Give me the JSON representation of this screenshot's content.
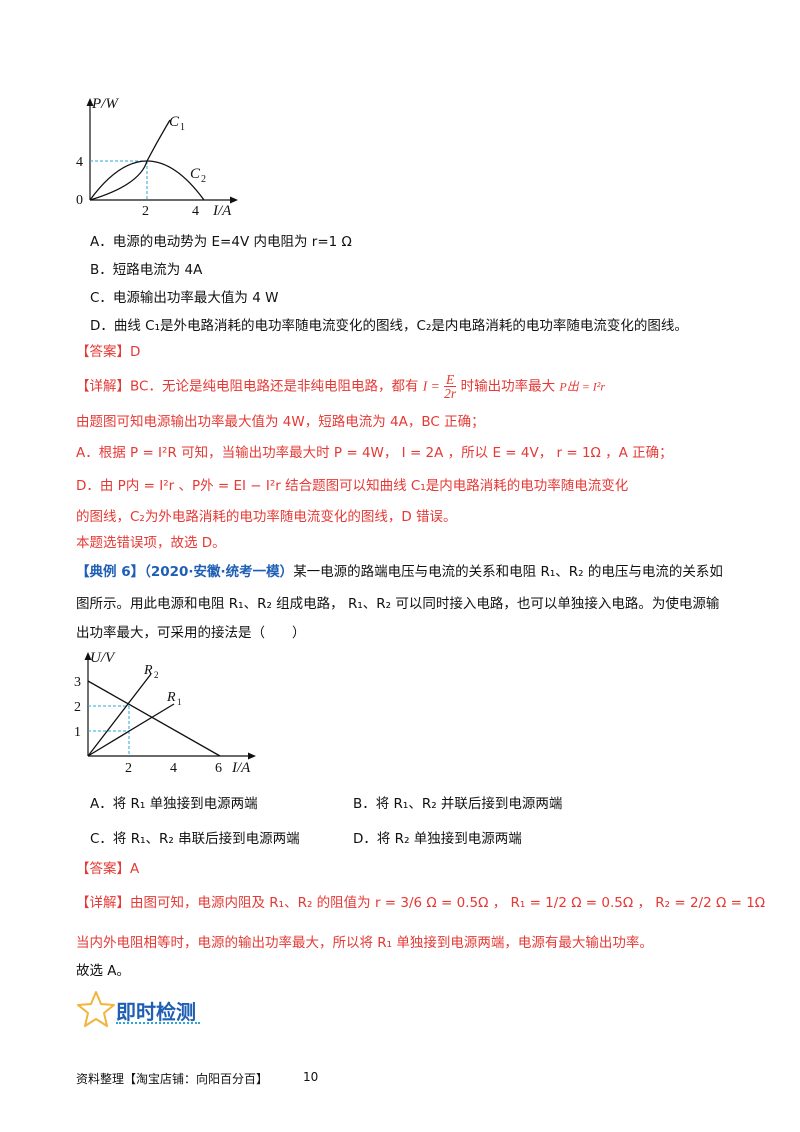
{
  "graph1": {
    "y_axis_label": "P/W",
    "x_axis_label": "I/A",
    "curve1_label": "C",
    "curve1_sub": "1",
    "curve2_label": "C",
    "curve2_sub": "2",
    "y_tick_4": "4",
    "origin": "0",
    "x_tick_2": "2",
    "x_tick_4": "4"
  },
  "options1": {
    "a": "A．电源的电动势为 E=4V 内电阻为 r=1 Ω",
    "b": "B．短路电流为 4A",
    "c": "C．电源输出功率最大值为 4 W",
    "d": "D．曲线 C₁是外电路消耗的电功率随电流变化的图线，C₂是内电路消耗的电功率随电流变化的图线。"
  },
  "answer1": "【答案】D",
  "detail1": {
    "line1_prefix": "【详解】BC．无论是纯电阻电路还是非纯电阻电路，都有",
    "line1_formula_lhs": "I =",
    "line1_frac_num": "E",
    "line1_frac_den": "2r",
    "line1_mid": "时输出功率最大",
    "line1_formula2": "P出 = I²r",
    "line2": "由题图可知电源输出功率最大值为 4W，短路电流为 4A，BC 正确；",
    "line3": "A．根据 P = I²R 可知，当输出功率最大时 P = 4W， I = 2A ，所以 E = 4V， r = 1Ω ，A 正确；",
    "line4": "D．由 P内 = I²r 、P外 = EI − I²r 结合题图可以知曲线 C₁是内电路消耗的电功率随电流变化",
    "line5": "的图线，C₂为外电路消耗的电功率随电流变化的图线，D 错误。",
    "line6": "本题选错误项，故选 D。"
  },
  "example6": {
    "tag": "【典例 6】",
    "source": "（2020·安徽·统考一模）",
    "line1_rest": "某一电源的路端电压与电流的关系和电阻 R₁、R₂ 的电压与电流的关系如",
    "line2": "图所示。用此电源和电阻 R₁、R₂ 组成电路， R₁、R₂ 可以同时接入电路，也可以单独接入电路。为使电源输",
    "line3": "出功率最大，可采用的接法是（　　）"
  },
  "graph2": {
    "y_axis_label": "U/V",
    "x_axis_label": "I/A",
    "r2_label": "R",
    "r2_sub": "2",
    "r1_label": "R",
    "r1_sub": "1",
    "y3": "3",
    "y2": "2",
    "y1": "1",
    "x2": "2",
    "x4": "4",
    "x6": "6"
  },
  "options2": {
    "a": "A．将 R₁ 单独接到电源两端",
    "b": "B．将 R₁、R₂ 并联后接到电源两端",
    "c": "C．将 R₁、R₂ 串联后接到电源两端",
    "d": "D．将 R₂ 单独接到电源两端"
  },
  "answer2": "【答案】A",
  "detail2": {
    "line1": "【详解】由图可知，电源内阻及 R₁、R₂ 的阻值为 r = 3/6 Ω = 0.5Ω ， R₁ = 1/2 Ω = 0.5Ω ， R₂ = 2/2 Ω = 1Ω",
    "line2": "当内外电阻相等时，电源的输出功率最大，所以将 R₁ 单独接到电源两端，电源有最大输出功率。",
    "line3": "故选 A。"
  },
  "section": {
    "title": "即时检测",
    "icon": "star-icon"
  },
  "footer": {
    "text": "资料整理【淘宝店铺：向阳百分百】",
    "page": "10"
  },
  "colors": {
    "red": "#e53935",
    "blue": "#1e5fb5",
    "dash": "#2aa7d6",
    "star": "#f3b43c"
  }
}
